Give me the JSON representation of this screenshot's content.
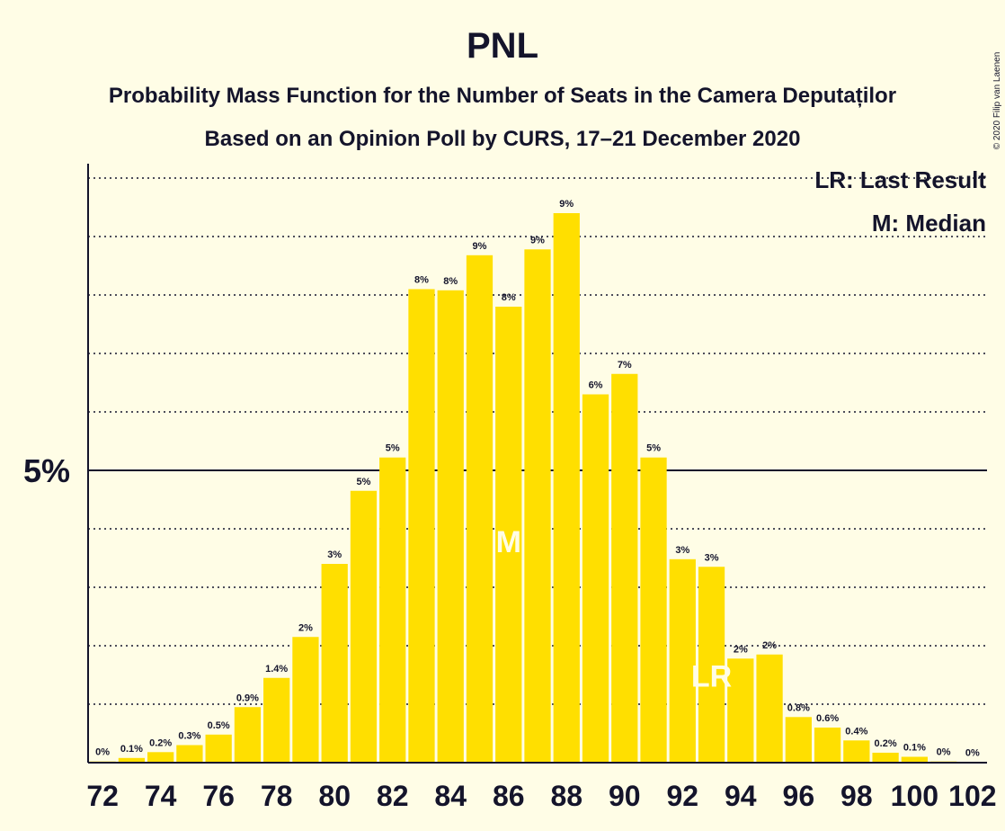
{
  "chart_data": {
    "type": "bar",
    "title": "PNL",
    "subtitle": "Probability Mass Function for the Number of Seats in the Camera Deputaților",
    "subtitle2": "Based on an Opinion Poll by CURS, 17–21 December 2020",
    "copyright": "© 2020 Filip van Laenen",
    "legend": {
      "last_result": "LR: Last Result",
      "median": "M: Median",
      "placement": "top-right"
    },
    "y_tick_label": "5%",
    "y_tick_value": 5,
    "ylim": [
      0,
      10.2
    ],
    "grid": true,
    "bar_color": "#FFDF00",
    "categories": [
      72,
      73,
      74,
      75,
      76,
      77,
      78,
      79,
      80,
      81,
      82,
      83,
      84,
      85,
      86,
      87,
      88,
      89,
      90,
      91,
      92,
      93,
      94,
      95,
      96,
      97,
      98,
      99,
      100,
      101,
      102
    ],
    "values": [
      0.02,
      0.08,
      0.18,
      0.3,
      0.48,
      0.95,
      1.45,
      2.15,
      3.4,
      4.65,
      5.22,
      8.1,
      8.08,
      8.68,
      7.8,
      8.78,
      9.4,
      6.3,
      6.65,
      5.22,
      3.48,
      3.35,
      1.78,
      1.85,
      0.78,
      0.6,
      0.38,
      0.17,
      0.1,
      0.02,
      0.01
    ],
    "data_labels": [
      "0%",
      "0.1%",
      "0.2%",
      "0.3%",
      "0.5%",
      "0.9%",
      "1.4%",
      "2%",
      "3%",
      "5%",
      "5%",
      "8%",
      "8%",
      "9%",
      "8%",
      "9%",
      "9%",
      "6%",
      "7%",
      "5%",
      "3%",
      "3%",
      "2%",
      "2%",
      "0.8%",
      "0.6%",
      "0.4%",
      "0.2%",
      "0.1%",
      "0%",
      "0%"
    ],
    "x_tick_labels": [
      "72",
      "74",
      "76",
      "78",
      "80",
      "82",
      "84",
      "86",
      "88",
      "90",
      "92",
      "94",
      "96",
      "98",
      "100",
      "102"
    ],
    "median_seat": 86,
    "median_marker": "M",
    "last_result_seat": 93,
    "last_result_marker": "LR"
  }
}
